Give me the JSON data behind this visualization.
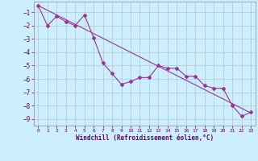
{
  "xlabel": "Windchill (Refroidissement éolien,°C)",
  "background_color": "#cceeff",
  "grid_color": "#aacccc",
  "line_color": "#993399",
  "series1_x": [
    0,
    1,
    2,
    3,
    4,
    5,
    6,
    7,
    8,
    9,
    10,
    11,
    12,
    13,
    14,
    15,
    16,
    17,
    18,
    19,
    20,
    21,
    22,
    23
  ],
  "series1_y": [
    -0.5,
    -2.0,
    -1.3,
    -1.7,
    -2.0,
    -1.2,
    -2.9,
    -4.8,
    -5.6,
    -6.4,
    -6.2,
    -5.9,
    -5.9,
    -5.0,
    -5.2,
    -5.2,
    -5.8,
    -5.8,
    -6.5,
    -6.7,
    -6.7,
    -8.0,
    -8.8,
    -8.5
  ],
  "series2_x": [
    0,
    23
  ],
  "series2_y": [
    -0.5,
    -8.55
  ],
  "ylim": [
    -9.5,
    -0.2
  ],
  "xlim": [
    -0.5,
    23.5
  ],
  "yticks": [
    -9,
    -8,
    -7,
    -6,
    -5,
    -4,
    -3,
    -2,
    -1
  ],
  "xticks": [
    0,
    1,
    2,
    3,
    4,
    5,
    6,
    7,
    8,
    9,
    10,
    11,
    12,
    13,
    14,
    15,
    16,
    17,
    18,
    19,
    20,
    21,
    22,
    23
  ],
  "font_color": "#660066",
  "marker": "D",
  "markersize": 2,
  "linewidth": 0.8
}
